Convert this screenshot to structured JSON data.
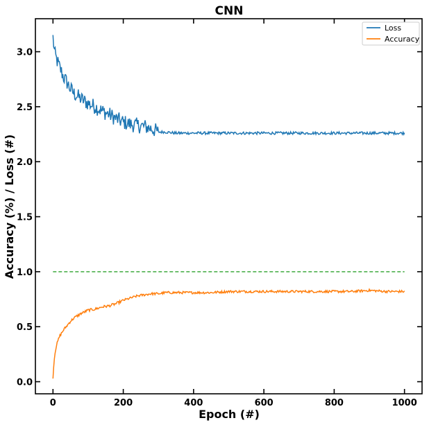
{
  "chart_data": {
    "type": "line",
    "title": "CNN",
    "xlabel": "Epoch (#)",
    "ylabel": "Accuracy (%) / Loss (#)",
    "xlim": [
      -50,
      1050
    ],
    "ylim": [
      -0.11,
      3.3
    ],
    "xticks": [
      0,
      200,
      400,
      600,
      800,
      1000
    ],
    "yticks": [
      0.0,
      0.5,
      1.0,
      1.5,
      2.0,
      2.5,
      3.0
    ],
    "xtick_labels": [
      "0",
      "200",
      "400",
      "600",
      "800",
      "1000"
    ],
    "ytick_labels": [
      "0.0",
      "0.5",
      "1.0",
      "1.5",
      "2.0",
      "2.5",
      "3.0"
    ],
    "grid": false,
    "legend_position": "top-right",
    "series": [
      {
        "name": "Loss",
        "color": "#1f77b4",
        "style": "solid",
        "x": [
          0,
          5,
          10,
          20,
          30,
          40,
          50,
          60,
          80,
          100,
          120,
          140,
          160,
          180,
          200,
          220,
          240,
          260,
          280,
          300,
          320,
          350,
          400,
          450,
          500,
          550,
          600,
          650,
          700,
          750,
          800,
          850,
          900,
          950,
          1000
        ],
        "y": [
          3.13,
          2.98,
          2.93,
          2.85,
          2.77,
          2.72,
          2.66,
          2.62,
          2.57,
          2.53,
          2.5,
          2.46,
          2.43,
          2.39,
          2.36,
          2.34,
          2.33,
          2.32,
          2.3,
          2.27,
          2.27,
          2.26,
          2.26,
          2.26,
          2.26,
          2.26,
          2.26,
          2.26,
          2.26,
          2.26,
          2.26,
          2.26,
          2.26,
          2.26,
          2.26
        ],
        "noise": 0.035
      },
      {
        "name": "Accuracy",
        "color": "#ff7f0e",
        "style": "solid",
        "x": [
          0,
          3,
          6,
          10,
          15,
          20,
          30,
          40,
          50,
          60,
          80,
          100,
          120,
          140,
          160,
          180,
          200,
          220,
          240,
          260,
          280,
          300,
          320,
          350,
          400,
          450,
          500,
          550,
          600,
          650,
          700,
          750,
          800,
          850,
          900,
          950,
          1000
        ],
        "y": [
          0.04,
          0.18,
          0.27,
          0.33,
          0.38,
          0.42,
          0.47,
          0.51,
          0.55,
          0.58,
          0.62,
          0.65,
          0.66,
          0.68,
          0.69,
          0.71,
          0.74,
          0.76,
          0.78,
          0.79,
          0.8,
          0.8,
          0.81,
          0.81,
          0.81,
          0.81,
          0.82,
          0.82,
          0.82,
          0.82,
          0.82,
          0.82,
          0.82,
          0.82,
          0.83,
          0.82,
          0.82
        ],
        "noise": 0.012
      },
      {
        "color": "#2ca02c",
        "style": "dashed",
        "x": [
          0,
          1000
        ],
        "y": [
          1.0,
          1.0
        ],
        "noise": 0
      }
    ]
  }
}
